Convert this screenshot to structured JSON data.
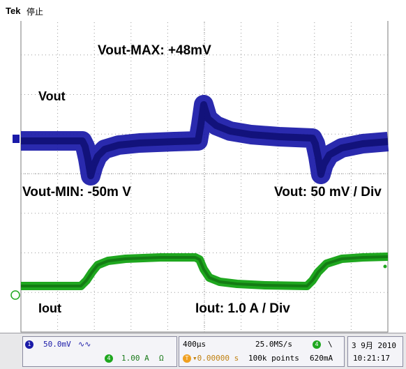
{
  "header": {
    "brand": "Tek",
    "state": "停止"
  },
  "annotations": {
    "vout_max": "Vout-MAX: +48mV",
    "vout": "Vout",
    "vout_min": "Vout-MIN: -50m V",
    "vout_scale": "Vout: 50 mV / Div",
    "iout": "Iout",
    "iout_scale": "Iout: 1.0 A / Div"
  },
  "markers": {
    "ch1": "1",
    "ch4": "4",
    "trigger": "T"
  },
  "status": {
    "ch1_scale": "50.0mV",
    "ch1_coupling": "∿∿",
    "ch1_num": "1",
    "ch4_scale": "1.00 A",
    "ch4_impedance": "Ω",
    "ch4_num": "4",
    "timebase": "400µs",
    "trigger_offset": "▾0.00000 s",
    "trigger_num": "T",
    "sample_rate": "25.0MS/s",
    "record_length": "100k points",
    "trig_ch": "4",
    "trig_slope": "\\",
    "trig_level": "620mA",
    "date": "3 9月 2010",
    "time": "10:21:17"
  },
  "colors": {
    "ch1": "#1a1aa8",
    "ch4": "#1fa71f",
    "grid": "#9a9a9a",
    "background": "#ffffff"
  }
}
